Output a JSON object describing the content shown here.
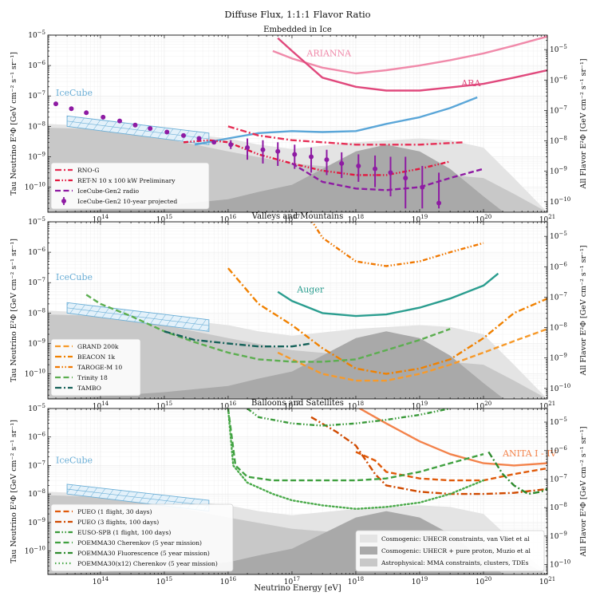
{
  "chart_data": {
    "type": "line",
    "title": "Diffuse Flux, 1:1:1 Flavor Ratio",
    "xlabel": "Neutrino Energy [eV]",
    "ylabel_left": "Tau Neutrino E²Φ [GeV cm⁻² s⁻¹ sr⁻¹]",
    "ylabel_right": "All Flavor E²Φ [GeV cm⁻² s⁻¹ sr⁻¹]",
    "x_scale": "log",
    "y_scale": "log",
    "xlim": [
      15000000000000.0,
      1e+21
    ],
    "ylim_left": [
      1.5e-11,
      1e-05
    ],
    "ylim_right": [
      4.5e-11,
      3e-05
    ],
    "x_tick_labels": [
      "10^14",
      "10^15",
      "10^16",
      "10^17",
      "10^18",
      "10^19",
      "10^20",
      "10^21"
    ],
    "y_tick_labels_left": [
      "10^-10",
      "10^-9",
      "10^-8",
      "10^-7",
      "10^-6",
      "10^-5"
    ],
    "y_tick_labels_right": [
      "10^-10",
      "10^-9",
      "10^-8",
      "10^-7",
      "10^-6",
      "10^-5"
    ],
    "grid": true,
    "shared_legend": {
      "placement": "lower right",
      "entries": [
        {
          "name": "Cosmogenic: UHECR constraints, van Vliet et al",
          "color": "#e4e4e4"
        },
        {
          "name": "Cosmogenic: UHECR + pure proton, Muzio et al",
          "color": "#a9a9a9"
        },
        {
          "name": "Astrophysical: MMA constraints, clusters, TDEs",
          "color": "#c8c8c8"
        }
      ]
    },
    "background_bands": [
      {
        "name": "Cosmogenic: UHECR constraints, van Vliet et al",
        "color": "#e4e4e4",
        "x": [
          15000000000000.0,
          100000000000000.0,
          1000000000000000.0,
          1e+16,
          3e+16,
          1e+17,
          1e+18,
          1e+19,
          3e+19,
          1e+20,
          3e+20,
          1e+21
        ],
        "y": [
          1.2e-08,
          1e-08,
          7e-09,
          4e-09,
          2.5e-09,
          1.8e-09,
          3e-09,
          4e-09,
          3.5e-09,
          2e-09,
          2e-10,
          1.5e-11
        ]
      },
      {
        "name": "Astrophysical: MMA constraints, clusters, TDEs",
        "color": "#c8c8c8",
        "x": [
          15000000000000.0,
          100000000000000.0,
          1000000000000000.0,
          1e+16,
          1e+17,
          1e+18,
          1e+19,
          1e+20,
          3e+20,
          1e+21
        ],
        "y": [
          9e-09,
          8e-09,
          4e-09,
          1.5e-09,
          6e-10,
          4e-10,
          3e-10,
          2e-10,
          6e-11,
          1.5e-11
        ]
      },
      {
        "name": "Cosmogenic: UHECR + pure proton, Muzio et al",
        "color": "#a9a9a9",
        "x": [
          15000000000000.0,
          100000000000000.0,
          1000000000000000.0,
          1e+16,
          3e+16,
          1e+17,
          3e+17,
          1e+18,
          3e+18,
          1e+19,
          3e+19,
          1e+20,
          2e+20
        ],
        "y": [
          1.6e-11,
          1.8e-11,
          2.5e-11,
          4e-11,
          7e-11,
          1.2e-10,
          4e-10,
          1.5e-09,
          2.5e-09,
          1.5e-09,
          4e-10,
          5e-11,
          1.6e-11
        ]
      }
    ],
    "icecube": {
      "label": "IceCube",
      "color": "#6aaed6",
      "upper": {
        "x": [
          30000000000000.0,
          5000000000000000.0
        ],
        "y": [
          2.2e-08,
          6e-09
        ]
      },
      "lower": {
        "x": [
          30000000000000.0,
          5000000000000000.0
        ],
        "y": [
          1e-08,
          2.5e-09
        ]
      }
    },
    "panels": [
      {
        "title": "Embedded in Ice",
        "legend_placement": "lower left",
        "series": [
          {
            "name": "ARIANNA",
            "color": "#f08aaa",
            "style": "solid",
            "x": [
              5e+16,
              1e+17,
              3e+17,
              1e+18,
              3e+18,
              1e+19,
              3e+19,
              1e+20,
              3e+20,
              1e+21
            ],
            "y": [
              3e-06,
              1.7e-06,
              8.5e-07,
              5.5e-07,
              7e-07,
              1e-06,
              1.5e-06,
              2.5e-06,
              4.5e-06,
              9e-06
            ]
          },
          {
            "name": "ARA",
            "color": "#e0487c",
            "style": "solid",
            "x": [
              6e+16,
              1e+17,
              3e+17,
              1e+18,
              3e+18,
              1e+19,
              3e+19,
              1e+20,
              3e+20,
              1e+21
            ],
            "y": [
              8e-06,
              3e-06,
              4e-07,
              2e-07,
              1.5e-07,
              1.5e-07,
              1.9e-07,
              2.5e-07,
              4e-07,
              7e-07
            ]
          },
          {
            "name": "IceCube",
            "color": "#5aa6d8",
            "style": "solid",
            "x": [
              3000000000000000.0,
              1e+16,
              3e+16,
              1e+17,
              3e+17,
              1e+18,
              3e+18,
              1e+19,
              3e+19,
              8e+19
            ],
            "y": [
              2.5e-09,
              4e-09,
              6e-09,
              7e-09,
              6.5e-09,
              7e-09,
              1.2e-08,
              2e-08,
              4e-08,
              9e-08
            ]
          },
          {
            "name": "RNO-G",
            "color": "#e62e55",
            "style": "dashdot",
            "x": [
              1e+16,
              3e+16,
              1e+17,
              3e+17,
              1e+18,
              3e+18,
              1e+19,
              5e+19
            ],
            "y": [
              1e-08,
              5e-09,
              3.5e-09,
              3e-09,
              2.5e-09,
              2.5e-09,
              2.5e-09,
              3e-09
            ]
          },
          {
            "name": "RET-N 10 x 100 kW Preliminary",
            "color": "#e3183f",
            "style": "dashdotdot",
            "x": [
              2000000000000000.0,
              5000000000000000.0,
              1e+16,
              3e+16,
              1e+17,
              3e+17,
              1e+18,
              3e+18,
              1e+19,
              3e+19
            ],
            "y": [
              3e-09,
              3.5e-09,
              3e-09,
              1.2e-09,
              6e-10,
              3.5e-10,
              2.5e-10,
              2.5e-10,
              4e-10,
              7e-10
            ]
          },
          {
            "name": "IceCube-Gen2 radio",
            "color": "#8e1ba3",
            "style": "dashed",
            "x": [
              1e+17,
              3e+17,
              1e+18,
              3e+18,
              1e+19,
              3e+19,
              1e+20
            ],
            "y": [
              6e-10,
              1.5e-10,
              9e-11,
              8e-11,
              1e-10,
              2e-10,
              4e-10
            ]
          },
          {
            "name": "IceCube-Gen2 10-year projected",
            "color": "#8e1ba3",
            "style": "points",
            "x": [
              20000000000000.0,
              35000000000000.0,
              60000000000000.0,
              110000000000000.0,
              200000000000000.0,
              350000000000000.0,
              600000000000000.0,
              1100000000000000.0,
              2000000000000000.0,
              3500000000000000.0,
              6000000000000000.0,
              1.1e+16,
              2e+16,
              3.5e+16,
              6e+16,
              1.1e+17,
              2e+17,
              3.5e+17,
              6e+17,
              1.1e+18,
              2e+18,
              3.5e+18,
              6e+18,
              1.1e+19,
              2e+19
            ],
            "y": [
              5.5e-08,
              3.8e-08,
              2.8e-08,
              2e-08,
              1.5e-08,
              1.1e-08,
              8.5e-09,
              6.5e-09,
              5e-09,
              4e-09,
              3e-09,
              2.5e-09,
              2e-09,
              1.7e-09,
              1.5e-09,
              1.2e-09,
              1e-09,
              8e-10,
              6e-10,
              5e-10,
              4e-10,
              3e-10,
              2e-10,
              1e-10,
              3e-11
            ],
            "err_lo": [
              5.5e-08,
              3.8e-08,
              2.8e-08,
              2e-08,
              1.5e-08,
              1.1e-08,
              8.5e-09,
              6.5e-09,
              5e-09,
              4e-09,
              3e-09,
              1.8e-09,
              8e-10,
              6e-10,
              5e-10,
              4e-10,
              3e-10,
              2.5e-10,
              2e-10,
              1.5e-10,
              1e-10,
              5e-11,
              2e-11,
              2e-11,
              2e-11
            ],
            "err_hi": [
              5.5e-08,
              3.8e-08,
              2.8e-08,
              2e-08,
              1.5e-08,
              1.1e-08,
              8.5e-09,
              6.5e-09,
              5e-09,
              4e-09,
              3e-09,
              3.5e-09,
              4e-09,
              3.5e-09,
              3e-09,
              2.5e-09,
              2e-09,
              1.7e-09,
              1.4e-09,
              1.2e-09,
              1.1e-09,
              1e-09,
              1e-09,
              5e-10,
              3e-10
            ]
          }
        ],
        "labels": [
          {
            "text": "ARIANNA",
            "color": "#f08aaa",
            "x": 1.7e+17,
            "y": 2e-06
          },
          {
            "text": "ARA",
            "color": "#e0487c",
            "x": 4.5e+19,
            "y": 2.1e-07
          },
          {
            "text": "IceCube",
            "color": "#6aaed6",
            "x": 20000000000000.0,
            "y": 1e-07
          }
        ],
        "legend": [
          "RNO-G",
          "RET-N 10 x 100 kW Preliminary",
          "IceCube-Gen2 radio",
          "IceCube-Gen2 10-year projected"
        ]
      },
      {
        "title": "Valleys and Mountains",
        "legend_placement": "lower left",
        "series": [
          {
            "name": "Auger",
            "color": "#2a9d8f",
            "style": "solid",
            "x": [
              6e+16,
              1e+17,
              3e+17,
              1e+18,
              3e+18,
              1e+19,
              3e+19,
              1e+20,
              1.7e+20
            ],
            "y": [
              5e-08,
              2.5e-08,
              1e-08,
              8e-09,
              9e-09,
              1.5e-08,
              3e-08,
              8e-08,
              2e-07
            ]
          },
          {
            "name": "GRAND 200k",
            "color": "#f79a2a",
            "style": "dashed",
            "x": [
              6e+16,
              1e+17,
              3e+17,
              1e+18,
              3e+18,
              1e+19,
              3e+19,
              1e+20,
              3e+20,
              1e+21
            ],
            "y": [
              5e-10,
              3e-10,
              1e-10,
              6e-11,
              6e-11,
              1e-10,
              2e-10,
              5e-10,
              1.2e-09,
              3e-09
            ]
          },
          {
            "name": "BEACON 1k",
            "color": "#f08100",
            "style": "dashdot",
            "x": [
              1e+16,
              3e+16,
              1e+17,
              3e+17,
              1e+18,
              3e+18,
              1e+19,
              3e+19,
              1e+20,
              3e+20,
              1e+21
            ],
            "y": [
              3e-07,
              2e-08,
              4e-09,
              7e-10,
              1.5e-10,
              1e-10,
              1.5e-10,
              3e-10,
              1.5e-09,
              1e-08,
              3e-08
            ]
          },
          {
            "name": "TAROGE-M 10",
            "color": "#f07800",
            "style": "dashdotdot",
            "x": [
              1.5e+17,
              3e+17,
              1e+18,
              3e+18,
              1e+19,
              3e+19,
              1e+20
            ],
            "y": [
              3e-05,
              3e-06,
              5e-07,
              3.5e-07,
              5e-07,
              1e-06,
              2e-06
            ]
          },
          {
            "name": "Trinity 18",
            "color": "#5cae50",
            "style": "dashed",
            "x": [
              60000000000000.0,
              100000000000000.0,
              300000000000000.0,
              1000000000000000.0,
              3000000000000000.0,
              1e+16,
              3e+16,
              1e+17,
              3e+17,
              1e+18,
              3e+18,
              1e+19,
              3e+19
            ],
            "y": [
              4e-08,
              2e-08,
              8e-09,
              2.5e-09,
              1.1e-09,
              5e-10,
              3e-10,
              2.5e-10,
              2.5e-10,
              3e-10,
              6e-10,
              1.3e-09,
              3e-09
            ]
          },
          {
            "name": "TAMBO",
            "color": "#16625a",
            "style": "dashdot",
            "x": [
              1000000000000000.0,
              3000000000000000.0,
              1e+16,
              3e+16,
              1e+17,
              2e+17
            ],
            "y": [
              2.5e-09,
              1.3e-09,
              1e-09,
              8e-10,
              8e-10,
              1e-09
            ]
          }
        ],
        "labels": [
          {
            "text": "Auger",
            "color": "#2a9d8f",
            "x": 1.2e+17,
            "y": 4.8e-08
          },
          {
            "text": "IceCube",
            "color": "#6aaed6",
            "x": 20000000000000.0,
            "y": 1.2e-07
          }
        ],
        "legend": [
          "GRAND 200k",
          "BEACON 1k",
          "TAROGE-M 10",
          "Trinity 18",
          "TAMBO"
        ]
      },
      {
        "title": "Balloons and Satellites",
        "legend_placement": "lower left",
        "series": [
          {
            "name": "ANITA I - IV",
            "color": "#f3824a",
            "style": "solid",
            "x": [
              3e+17,
              1e+18,
              3e+18,
              1e+19,
              3e+19,
              1e+20,
              3e+20,
              1e+21
            ],
            "y": [
              0.0001,
              1.2e-05,
              3e-06,
              7e-07,
              2.5e-07,
              1.2e-07,
              1e-07,
              1.2e-07
            ]
          },
          {
            "name": "PUEO (1 flight, 30 days)",
            "color": "#e05a0a",
            "style": "dashed",
            "x": [
              1e+18,
              2e+18,
              3e+18,
              1e+19,
              3e+19,
              1e+20,
              3e+20,
              1e+21
            ],
            "y": [
              3e-07,
              1.5e-07,
              6e-08,
              3.5e-08,
              3e-08,
              3e-08,
              5e-08,
              8e-08
            ]
          },
          {
            "name": "PUEO (3 flights, 100 days)",
            "color": "#d04a00",
            "style": "dashdot",
            "x": [
              2e+17,
              5e+17,
              1e+18,
              2e+18,
              3e+18,
              1e+19,
              3e+19,
              1e+20,
              3e+20,
              1e+21
            ],
            "y": [
              5e-06,
              1.5e-06,
              5e-07,
              5e-08,
              2e-08,
              1.2e-08,
              1e-08,
              1e-08,
              1.1e-08,
              1.5e-08
            ]
          },
          {
            "name": "EUSO-SPB (1 flight, 100 days)",
            "color": "#3a9a3a",
            "style": "dashdotdot",
            "x": [
              2e+16,
              3e+16,
              1e+17,
              3e+17,
              1e+18,
              3e+18,
              1e+19,
              3e+19
            ],
            "y": [
              1e-05,
              5e-06,
              3e-06,
              2.5e-06,
              3e-06,
              4e-06,
              6e-06,
              1e-05
            ]
          },
          {
            "name": "POEMMA30 Cherenkov (5 year mission)",
            "color": "#3fa03f",
            "style": "dashed",
            "x": [
              1e+16,
              1.3e+16,
              2e+16,
              5e+16,
              1e+17,
              3e+17,
              1e+18,
              3e+18,
              1e+19,
              3e+19,
              1e+20
            ],
            "y": [
              1e-05,
              1e-07,
              4e-08,
              3e-08,
              3e-08,
              3e-08,
              3e-08,
              3.5e-08,
              6e-08,
              1.2e-07,
              2.5e-07
            ]
          },
          {
            "name": "POEMMA30 Fluorescence (5 year mission)",
            "color": "#2e8b2e",
            "style": "dashdot",
            "x": [
              1.2e+20,
              2e+20,
              3e+20,
              5e+20,
              8e+20,
              1e+21
            ],
            "y": [
              3e-07,
              5e-08,
              2e-08,
              1e-08,
              1.2e-08,
              1.5e-08
            ]
          },
          {
            "name": "POEMMA30(x12) Cherenkov (5 year mission)",
            "color": "#4aaa4a",
            "style": "dotted",
            "x": [
              1e+16,
              1.2e+16,
              2e+16,
              5e+16,
              1e+17,
              3e+17,
              1e+18,
              3e+18,
              1e+19,
              3e+19,
              1e+20
            ],
            "y": [
              1e-05,
              1e-07,
              2.5e-08,
              1e-08,
              6e-09,
              4e-09,
              3e-09,
              3.5e-09,
              5e-09,
              1e-08,
              3e-08
            ]
          }
        ],
        "labels": [
          {
            "text": "ANITA I - IV",
            "color": "#f3824a",
            "x": 2e+20,
            "y": 2.1e-07
          },
          {
            "text": "IceCube",
            "color": "#6aaed6",
            "x": 20000000000000.0,
            "y": 1.2e-07
          }
        ],
        "legend": [
          "PUEO (1 flight, 30 days)",
          "PUEO (3 flights, 100 days)",
          "EUSO-SPB (1 flight, 100 days)",
          "POEMMA30 Cherenkov (5 year mission)",
          "POEMMA30 Fluorescence (5 year mission)",
          "POEMMA30(x12) Cherenkov (5 year mission)"
        ]
      }
    ]
  }
}
